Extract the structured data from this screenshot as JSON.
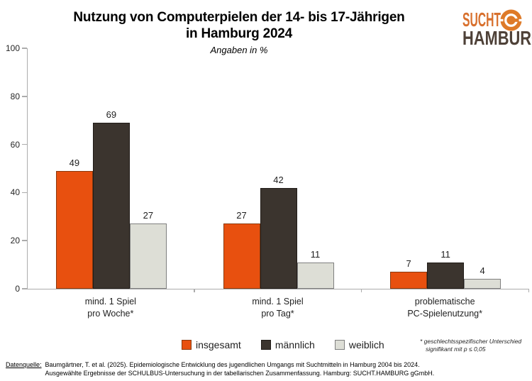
{
  "header": {
    "title_line1": "Nutzung von Computerpielen der 14- bis 17-Jährigen",
    "title_line2": "in Hamburg 2024",
    "subtitle": "Angaben in %"
  },
  "logo": {
    "top": "SUCHT",
    "bottom": "HAMBURG",
    "orange": "#D8702D",
    "brown": "#4E4138"
  },
  "chart_data": {
    "type": "bar",
    "title": "Nutzung von Computerpielen der 14- bis 17-Jährigen in Hamburg 2024",
    "subtitle": "Angaben in %",
    "unit": "%",
    "categories": [
      "mind. 1 Spiel pro Woche*",
      "mind. 1 Spiel pro Tag*",
      "problematische PC-Spielenutzung*"
    ],
    "category_lines": [
      [
        "mind. 1 Spiel",
        "pro Woche*"
      ],
      [
        "mind. 1 Spiel",
        "pro Tag*"
      ],
      [
        "problematische",
        "PC-Spielenutzung*"
      ]
    ],
    "series": [
      {
        "name": "insgesamt",
        "values": [
          49,
          27,
          7
        ],
        "color": "#E8500F",
        "border": "#8B3A0E"
      },
      {
        "name": "männlich",
        "values": [
          69,
          42,
          11
        ],
        "color": "#3B342E",
        "border": "#211C18"
      },
      {
        "name": "weiblich",
        "values": [
          27,
          11,
          4
        ],
        "color": "#DDDED6",
        "border": "#7F7F7F"
      }
    ],
    "ylim": [
      0,
      100
    ],
    "yticks": [
      0,
      20,
      40,
      60,
      80,
      100
    ],
    "grid": false,
    "value_labels": true,
    "legend_position": "bottom",
    "axis_color": "#ACACAC"
  },
  "note": {
    "line1": "* geschlechtsspezifischer Unterschied",
    "line2": "signifikant mit p ≤ 0,05"
  },
  "footer": {
    "label": "Datenquelle:",
    "line1": "Baumgärtner, T. et al. (2025). Epidemiologische Entwicklung des jugendlichen Umgangs mit Suchtmitteln in Hamburg 2004 bis 2024.",
    "line2": "Ausgewählte Ergebnisse der SCHULBUS-Untersuchung in der tabellarischen Zusammenfassung. Hamburg: SUCHT.HAMBURG gGmbH."
  }
}
